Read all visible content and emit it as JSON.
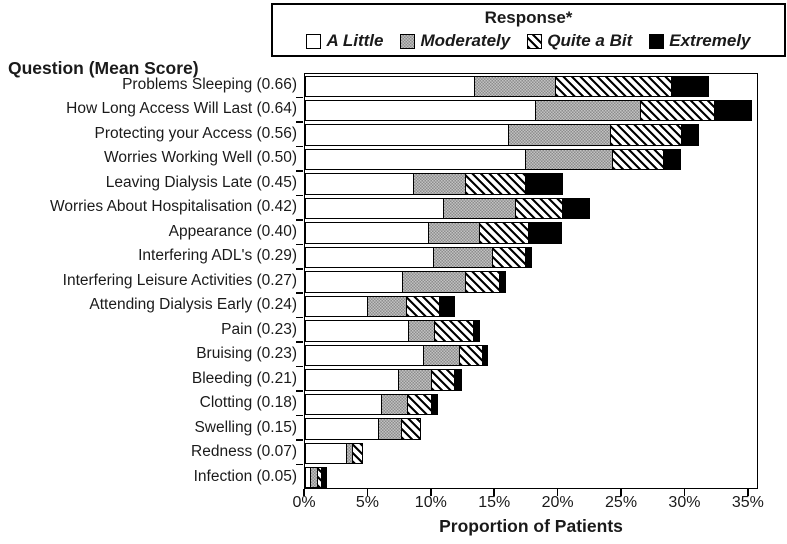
{
  "header": {
    "y_axis_title": "Question (Mean Score)"
  },
  "legend": {
    "title": "Response*",
    "items": [
      {
        "label": "A Little",
        "swatch": "white-square-icon"
      },
      {
        "label": "Moderately",
        "swatch": "gray-dotted-square-icon"
      },
      {
        "label": "Quite a Bit",
        "swatch": "diagonal-hatch-square-icon"
      },
      {
        "label": "Extremely",
        "swatch": "black-square-icon"
      }
    ]
  },
  "colors": {
    "a_little": "#ffffff",
    "moderately": "#aeaeae",
    "quite_a_bit_pattern": "black-diagonal-hatch-on-white",
    "extremely": "#000000",
    "border": "#000000"
  },
  "chart_data": {
    "type": "bar",
    "orientation": "horizontal",
    "stacked": true,
    "xlabel": "Proportion of Patients",
    "ylabel": "Question (Mean Score)",
    "xlim": [
      0,
      35.8
    ],
    "x_ticks": [
      0,
      5,
      10,
      15,
      20,
      25,
      30,
      35
    ],
    "x_tick_labels": [
      "0%",
      "5%",
      "10%",
      "15%",
      "20%",
      "25%",
      "30%",
      "35%"
    ],
    "grid": false,
    "legend_position": "top",
    "categories": [
      "Problems Sleeping (0.66)",
      "How Long Access Will Last (0.64)",
      "Protecting your Access (0.56)",
      "Worries Working Well (0.50)",
      "Leaving Dialysis Late (0.45)",
      "Worries About Hospitalisation (0.42)",
      "Appearance (0.40)",
      "Interfering ADL's (0.29)",
      "Interfering Leisure Activities (0.27)",
      "Attending Dialysis Early (0.24)",
      "Pain (0.23)",
      "Bruising (0.23)",
      "Bleeding (0.21)",
      "Clotting (0.18)",
      "Swelling (0.15)",
      "Redness (0.07)",
      "Infection (0.05)"
    ],
    "series": [
      {
        "name": "A Little",
        "values": [
          13.4,
          18.2,
          16.1,
          17.4,
          8.6,
          11.0,
          9.8,
          10.2,
          7.7,
          5.0,
          8.2,
          9.4,
          7.4,
          6.1,
          5.8,
          3.3,
          0.5
        ]
      },
      {
        "name": "Moderately",
        "values": [
          6.5,
          8.4,
          8.1,
          7.0,
          4.2,
          5.7,
          4.1,
          4.7,
          5.1,
          3.1,
          2.1,
          2.9,
          2.7,
          2.1,
          1.9,
          0.6,
          0.6
        ]
      },
      {
        "name": "Quite a Bit",
        "values": [
          9.2,
          5.9,
          5.7,
          4.1,
          4.8,
          3.8,
          3.9,
          2.7,
          2.7,
          2.7,
          3.2,
          1.9,
          1.9,
          2.0,
          1.6,
          0.8,
          0.4
        ]
      },
      {
        "name": "Extremely",
        "values": [
          3.0,
          3.0,
          1.4,
          1.4,
          3.0,
          2.2,
          2.7,
          0.5,
          0.6,
          1.3,
          0.5,
          0.5,
          0.6,
          0.5,
          0,
          0,
          0.5
        ]
      }
    ]
  }
}
